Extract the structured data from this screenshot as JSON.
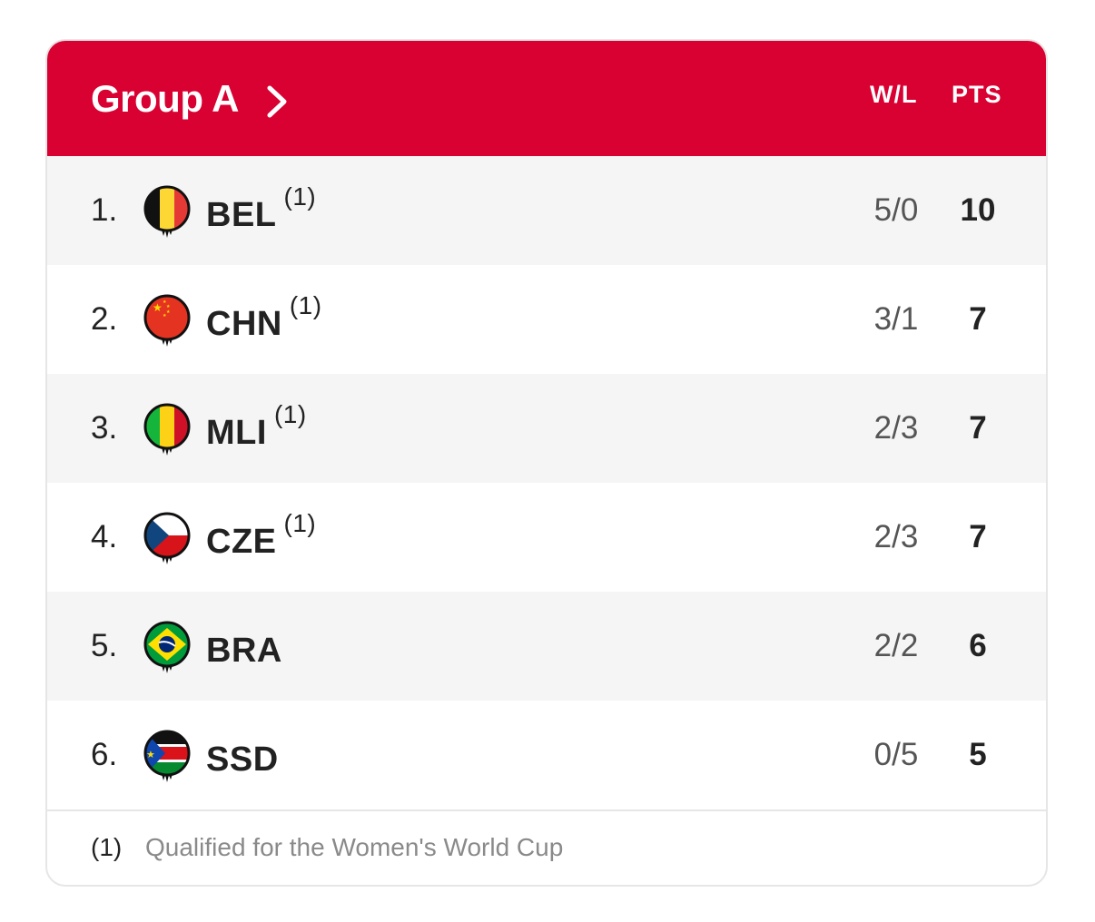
{
  "header": {
    "title": "Group A",
    "col_wl": "W/L",
    "col_pts": "PTS"
  },
  "rows": [
    {
      "rank": "1.",
      "team": "BEL",
      "qual": "(1)",
      "wl": "5/0",
      "pts": "10",
      "flag": "belgium-flag-icon"
    },
    {
      "rank": "2.",
      "team": "CHN",
      "qual": "(1)",
      "wl": "3/1",
      "pts": "7",
      "flag": "china-flag-icon"
    },
    {
      "rank": "3.",
      "team": "MLI",
      "qual": "(1)",
      "wl": "2/3",
      "pts": "7",
      "flag": "mali-flag-icon"
    },
    {
      "rank": "4.",
      "team": "CZE",
      "qual": "(1)",
      "wl": "2/3",
      "pts": "7",
      "flag": "czechia-flag-icon"
    },
    {
      "rank": "5.",
      "team": "BRA",
      "qual": "",
      "wl": "2/2",
      "pts": "6",
      "flag": "brazil-flag-icon"
    },
    {
      "rank": "6.",
      "team": "SSD",
      "qual": "",
      "wl": "0/5",
      "pts": "5",
      "flag": "south-sudan-flag-icon"
    }
  ],
  "footer": {
    "marker": "(1)",
    "note": "Qualified for the Women's World Cup"
  },
  "colors": {
    "header_bg": "#d90032",
    "row_alt": "#f5f5f5"
  }
}
